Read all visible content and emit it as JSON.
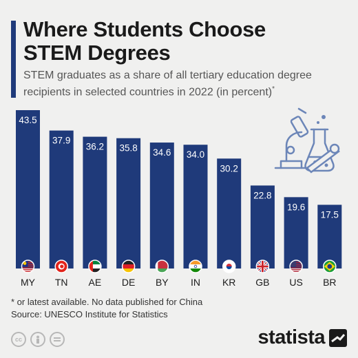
{
  "title_line1": "Where Students Choose",
  "title_line2": "STEM Degrees",
  "subtitle_text": "STEM graduates as a share of all tertiary education degree recipients in selected countries in 2022 (in percent)",
  "subtitle_mark": "*",
  "footnote": "* or latest available. No data published for China",
  "source": "Source: UNESCO Institute for Statistics",
  "brand": "statista",
  "license_icons": [
    "cc-icon",
    "by-icon",
    "nd-icon"
  ],
  "chart_data": {
    "type": "bar",
    "categories": [
      "MY",
      "TN",
      "AE",
      "DE",
      "BY",
      "IN",
      "KR",
      "GB",
      "US",
      "BR"
    ],
    "values": [
      43.5,
      37.9,
      36.2,
      35.8,
      34.6,
      34.0,
      30.2,
      22.8,
      19.6,
      17.5
    ],
    "value_labels": [
      "43.5",
      "37.9",
      "36.2",
      "35.8",
      "34.6",
      "34.0",
      "30.2",
      "22.8",
      "19.6",
      "17.5"
    ],
    "ylim": [
      0,
      43.5
    ],
    "bar_color": "#1f3a7a",
    "grid": false,
    "legend": false
  }
}
